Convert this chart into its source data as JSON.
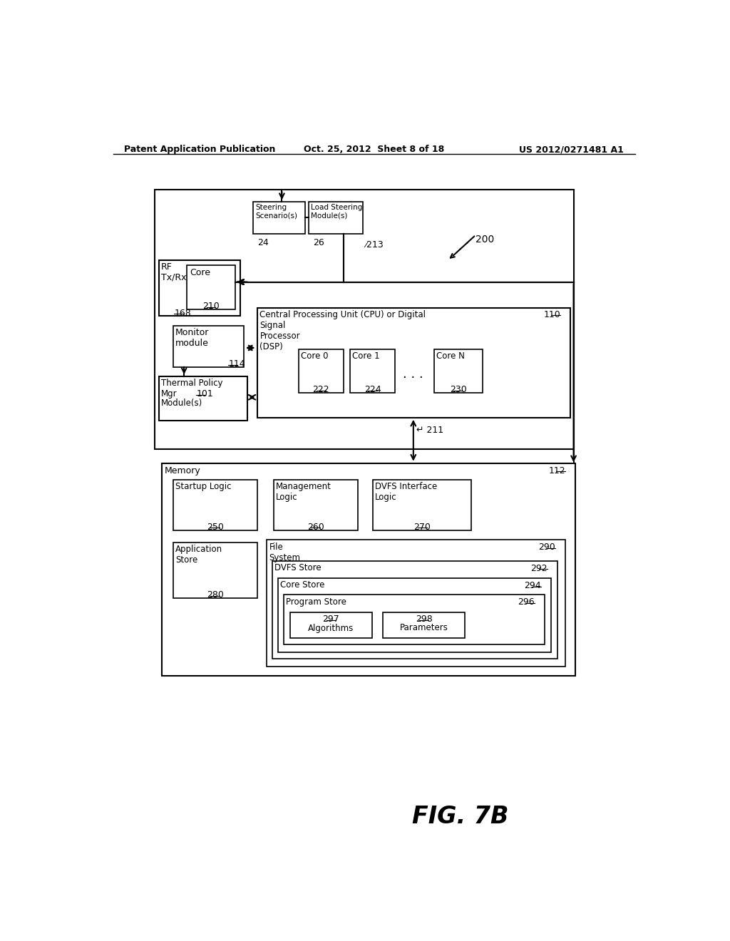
{
  "header_left": "Patent Application Publication",
  "header_mid": "Oct. 25, 2012  Sheet 8 of 18",
  "header_right": "US 2012/0271481 A1",
  "fig_label": "FIG. 7B",
  "bg_color": "#ffffff"
}
